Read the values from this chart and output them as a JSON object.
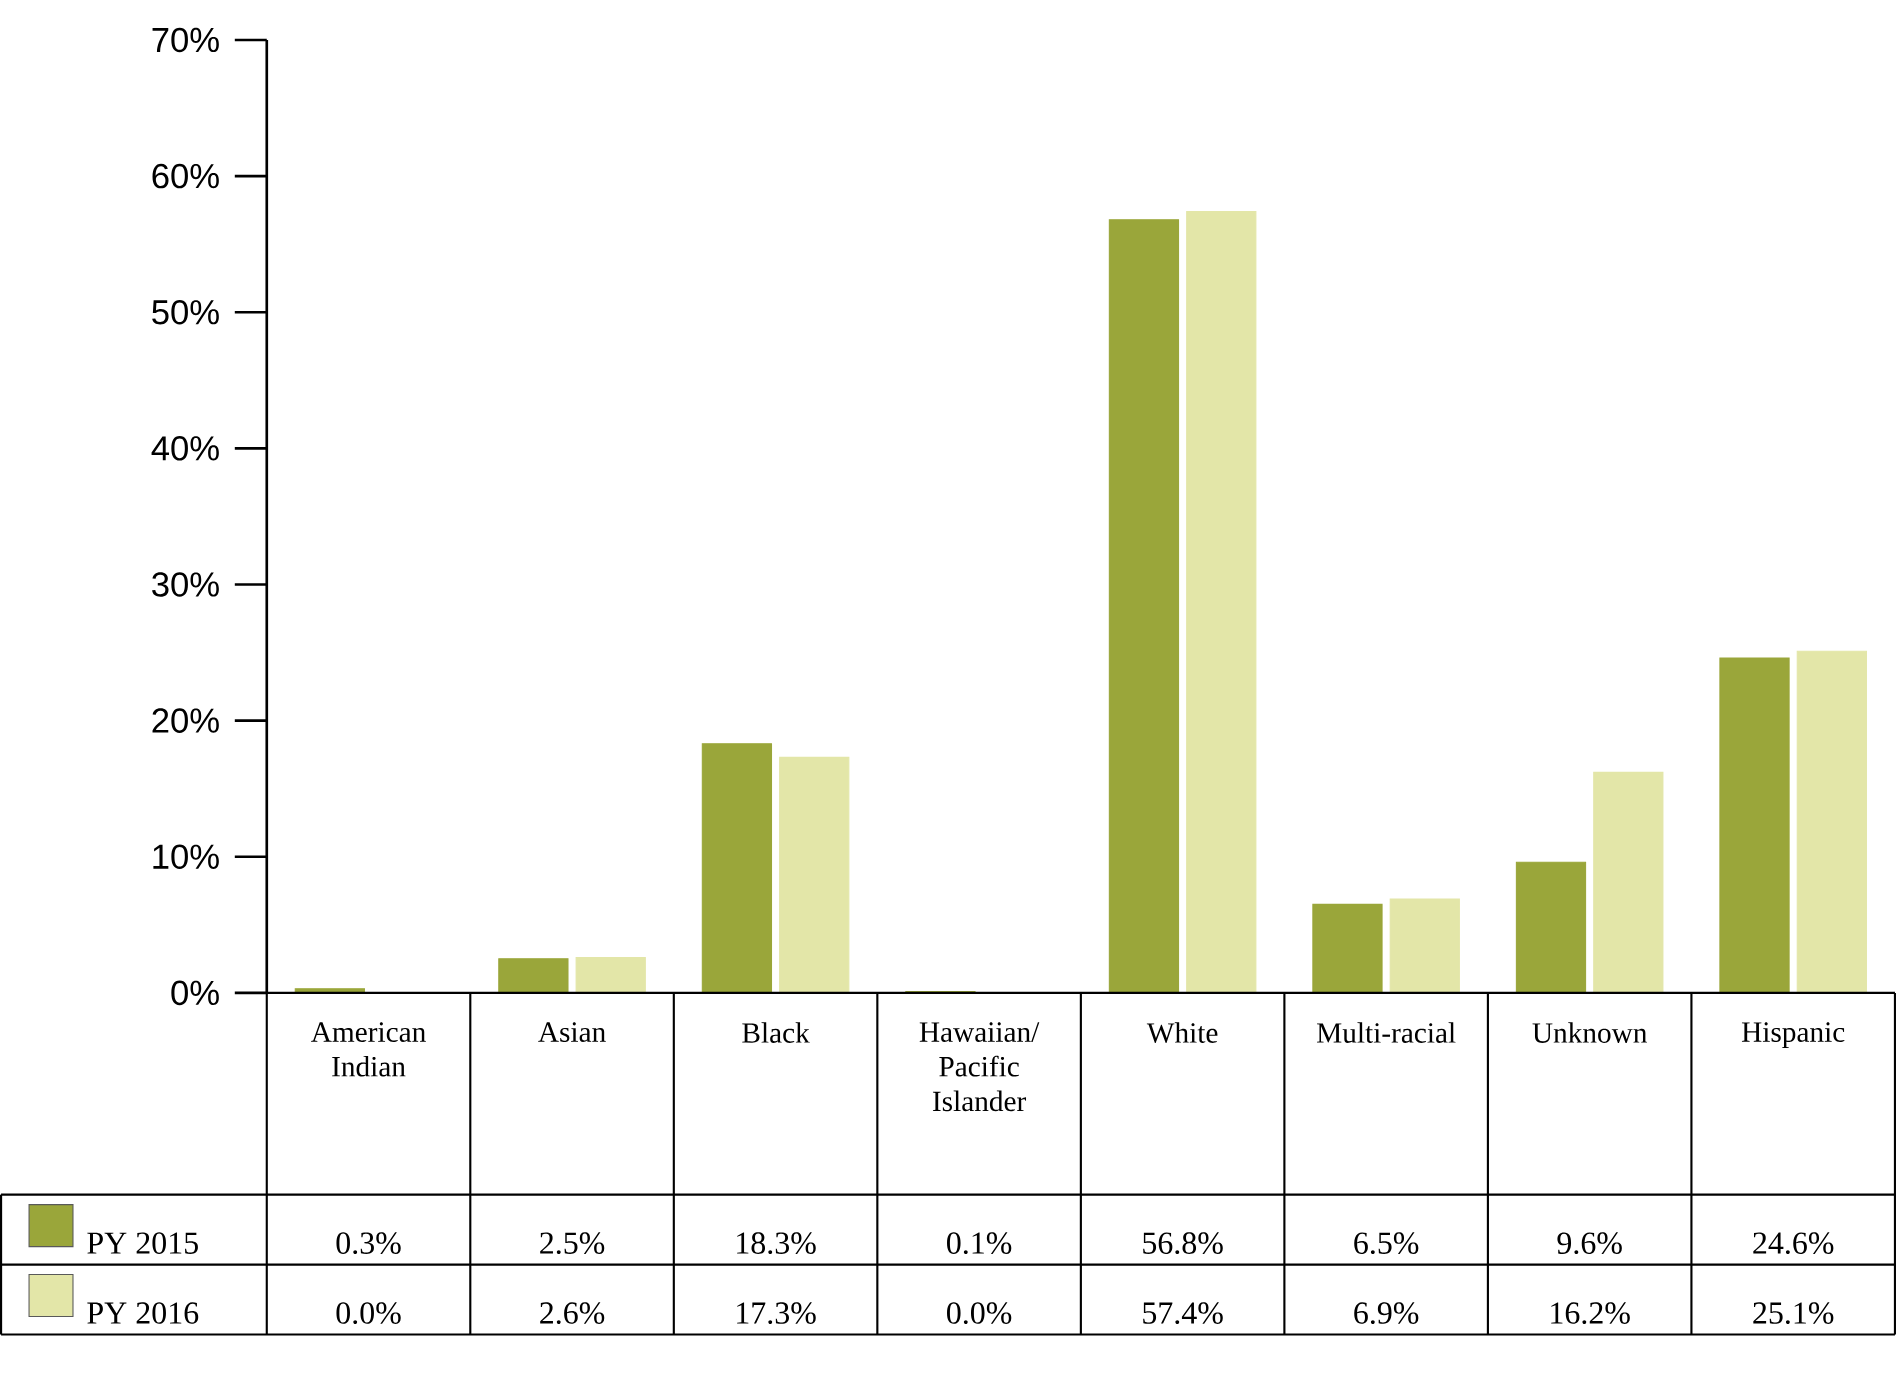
{
  "chart_data": {
    "type": "bar",
    "categories": [
      "American Indian",
      "Asian",
      "Black",
      "Hawaiian/ Pacific Islander",
      "White",
      "Multi-racial",
      "Unknown",
      "Hispanic"
    ],
    "series": [
      {
        "name": "PY 2015",
        "color": "#9aa63a",
        "values": [
          0.3,
          2.5,
          18.3,
          0.1,
          56.8,
          6.5,
          9.6,
          24.6
        ],
        "value_labels": [
          "0.3%",
          "2.5%",
          "18.3%",
          "0.1%",
          "56.8%",
          "6.5%",
          "9.6%",
          "24.6%"
        ]
      },
      {
        "name": "PY 2016",
        "color": "#e3e6a8",
        "values": [
          0.0,
          2.6,
          17.3,
          0.0,
          57.4,
          6.9,
          16.2,
          25.1
        ],
        "value_labels": [
          "0.0%",
          "2.6%",
          "17.3%",
          "0.0%",
          "57.4%",
          "6.9%",
          "16.2%",
          "25.1%"
        ]
      }
    ],
    "ylim": [
      0,
      70
    ],
    "yticks": [
      {
        "value": 0,
        "label": "0%"
      },
      {
        "value": 10,
        "label": "10%"
      },
      {
        "value": 20,
        "label": "20%"
      },
      {
        "value": 30,
        "label": "30%"
      },
      {
        "value": 40,
        "label": "40%"
      },
      {
        "value": 50,
        "label": "50%"
      },
      {
        "value": 60,
        "label": "60%"
      },
      {
        "value": 70,
        "label": "70%"
      }
    ],
    "legend": "bottom left",
    "grid": false
  }
}
